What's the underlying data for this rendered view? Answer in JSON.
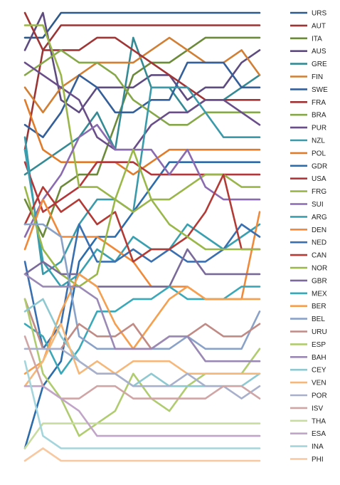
{
  "chart_data": {
    "type": "line",
    "subtype": "bump",
    "title": "",
    "xlabel": "",
    "ylabel": "",
    "x": [
      1,
      2,
      3,
      4,
      5,
      6,
      7,
      8,
      9,
      10,
      11,
      12,
      13,
      14
    ],
    "ylim": [
      1,
      36
    ],
    "y_inverted": true,
    "grid": false,
    "legend_position": "right",
    "series": [
      {
        "name": "URS",
        "color": "#2e5a8a",
        "values": [
          3,
          3,
          1,
          1,
          1,
          1,
          1,
          1,
          1,
          1,
          1,
          1,
          1,
          1
        ]
      },
      {
        "name": "AUT",
        "color": "#9b3535",
        "values": [
          12,
          4,
          2,
          2,
          2,
          2,
          2,
          2,
          2,
          2,
          2,
          2,
          2,
          2
        ]
      },
      {
        "name": "ITA",
        "color": "#6b8a3a",
        "values": [
          16,
          19,
          15,
          14,
          14,
          10,
          6,
          5,
          5,
          4,
          3,
          3,
          3,
          3
        ]
      },
      {
        "name": "AUS",
        "color": "#5e4b80",
        "values": [
          4,
          1,
          8,
          9,
          7,
          7,
          7,
          6,
          6,
          8,
          7,
          7,
          5,
          4
        ]
      },
      {
        "name": "GRE",
        "color": "#358a94",
        "values": [
          14,
          13,
          12,
          11,
          9,
          12,
          3,
          7,
          7,
          9,
          8,
          8,
          7,
          6
        ]
      },
      {
        "name": "FIN",
        "color": "#d07f35",
        "values": [
          7,
          9,
          7,
          6,
          5,
          5,
          5,
          4,
          3,
          4,
          5,
          5,
          4,
          6
        ]
      },
      {
        "name": "SWE",
        "color": "#355f99",
        "values": [
          10,
          11,
          9,
          6,
          7,
          9,
          9,
          8,
          8,
          5,
          5,
          5,
          7,
          7
        ]
      },
      {
        "name": "FRA",
        "color": "#a03535",
        "values": [
          1,
          4,
          4,
          4,
          3,
          3,
          4,
          5,
          6,
          7,
          8,
          8,
          8,
          8
        ]
      },
      {
        "name": "BRA",
        "color": "#86a84a",
        "values": [
          6,
          5,
          4,
          5,
          5,
          6,
          8,
          9,
          10,
          10,
          9,
          9,
          9,
          9
        ]
      },
      {
        "name": "PUR",
        "color": "#6a4e8a",
        "values": [
          5,
          6,
          7,
          8,
          11,
          12,
          12,
          10,
          9,
          9,
          8,
          8,
          9,
          10
        ]
      },
      {
        "name": "NZL",
        "color": "#3a9aaa",
        "values": [
          11,
          22,
          21,
          18,
          16,
          16,
          17,
          7,
          7,
          7,
          9,
          11,
          11,
          11
        ]
      },
      {
        "name": "POL",
        "color": "#e07b2a",
        "values": [
          8,
          12,
          13,
          13,
          13,
          13,
          14,
          13,
          12,
          12,
          12,
          12,
          12,
          12
        ]
      },
      {
        "name": "GDR",
        "color": "#2c6cab",
        "values": [
          36,
          31,
          29,
          21,
          19,
          19,
          17,
          15,
          13,
          13,
          13,
          13,
          13,
          13
        ]
      },
      {
        "name": "USA",
        "color": "#b3363a",
        "values": [
          13,
          17,
          16,
          15,
          13,
          13,
          13,
          14,
          14,
          14,
          14,
          14,
          14,
          14
        ]
      },
      {
        "name": "FRG",
        "color": "#9ab54a",
        "values": [
          2,
          2,
          6,
          15,
          15,
          16,
          17,
          16,
          16,
          15,
          14,
          14,
          15,
          15
        ]
      },
      {
        "name": "SUI",
        "color": "#8a6bb0",
        "values": [
          19,
          16,
          14,
          11,
          10,
          12,
          12,
          12,
          14,
          12,
          15,
          16,
          16,
          16
        ]
      },
      {
        "name": "ARG",
        "color": "#3aa0b0",
        "values": [
          12,
          21,
          23,
          22,
          20,
          21,
          19,
          20,
          20,
          18,
          19,
          20,
          19,
          18
        ]
      },
      {
        "name": "DEN",
        "color": "#f08a3a",
        "values": [
          20,
          16,
          19,
          19,
          19,
          20,
          21,
          23,
          23,
          23,
          24,
          24,
          24,
          17
        ]
      },
      {
        "name": "NED",
        "color": "#3a6fb0",
        "values": [
          21,
          28,
          26,
          18,
          21,
          21,
          20,
          21,
          20,
          21,
          21,
          20,
          18,
          19
        ]
      },
      {
        "name": "CAN",
        "color": "#b33a35",
        "values": [
          18,
          15,
          17,
          16,
          18,
          17,
          21,
          20,
          20,
          19,
          17,
          14,
          20,
          20
        ]
      },
      {
        "name": "NOR",
        "color": "#9ab84a",
        "values": [
          15,
          20,
          22,
          23,
          22,
          16,
          12,
          16,
          18,
          19,
          20,
          20,
          20,
          20
        ]
      },
      {
        "name": "GBR",
        "color": "#7a6a9a",
        "values": [
          22,
          21,
          22,
          22,
          23,
          23,
          23,
          23,
          23,
          20,
          22,
          22,
          22,
          22
        ]
      },
      {
        "name": "MEX",
        "color": "#3aa8b8",
        "values": [
          26,
          27,
          30,
          28,
          25,
          25,
          24,
          24,
          23,
          24,
          24,
          24,
          23,
          23
        ]
      },
      {
        "name": "BER",
        "color": "#f5a050",
        "values": [
          30,
          29,
          25,
          22,
          23,
          26,
          28,
          26,
          24,
          23,
          24,
          24,
          24,
          24
        ]
      },
      {
        "name": "BEL",
        "color": "#8aa2c8",
        "values": [
          18,
          18,
          19,
          27,
          28,
          28,
          28,
          28,
          28,
          27,
          28,
          28,
          28,
          25
        ]
      },
      {
        "name": "URU",
        "color": "#c08a85",
        "values": [
          24,
          28,
          28,
          26,
          27,
          27,
          26,
          28,
          27,
          27,
          26,
          27,
          27,
          26
        ]
      },
      {
        "name": "ESP",
        "color": "#b0cc70",
        "values": [
          24,
          30,
          32,
          35,
          34,
          33,
          30,
          32,
          33,
          31,
          30,
          30,
          30,
          28
        ]
      },
      {
        "name": "BAH",
        "color": "#9a88b5",
        "values": [
          22,
          23,
          23,
          23,
          24,
          28,
          28,
          28,
          27,
          27,
          29,
          29,
          29,
          29
        ]
      },
      {
        "name": "CEY",
        "color": "#8ec8d0",
        "values": [
          25,
          24,
          27,
          29,
          30,
          30,
          31,
          30,
          31,
          31,
          31,
          31,
          31,
          30
        ]
      },
      {
        "name": "VEN",
        "color": "#f5b87a",
        "values": [
          31,
          29,
          26,
          30,
          29,
          30,
          29,
          29,
          29,
          30,
          30,
          30,
          30,
          30
        ]
      },
      {
        "name": "POR",
        "color": "#a8b0cc",
        "values": [
          28,
          28,
          28,
          29,
          30,
          30,
          31,
          31,
          31,
          30,
          31,
          31,
          32,
          31
        ]
      },
      {
        "name": "ISV",
        "color": "#d0a5a5",
        "values": [
          27,
          31,
          32,
          32,
          31,
          31,
          32,
          32,
          32,
          32,
          32,
          31,
          31,
          32
        ]
      },
      {
        "name": "THA",
        "color": "#c8dca0",
        "values": [
          36,
          34,
          34,
          34,
          34,
          34,
          34,
          34,
          34,
          34,
          34,
          34,
          34,
          34
        ]
      },
      {
        "name": "ESA",
        "color": "#c0a5c8",
        "values": [
          31,
          31,
          32,
          33,
          35,
          35,
          35,
          35,
          35,
          35,
          35,
          35,
          35,
          35
        ]
      },
      {
        "name": "INA",
        "color": "#a5d5dc",
        "values": [
          29,
          35,
          36,
          36,
          36,
          36,
          36,
          36,
          36,
          36,
          36,
          36,
          36,
          36
        ]
      },
      {
        "name": "PHI",
        "color": "#f8c8a0",
        "values": [
          37,
          36,
          37,
          37,
          37,
          37,
          37,
          37,
          37,
          37,
          37,
          37,
          37,
          37
        ]
      }
    ]
  }
}
